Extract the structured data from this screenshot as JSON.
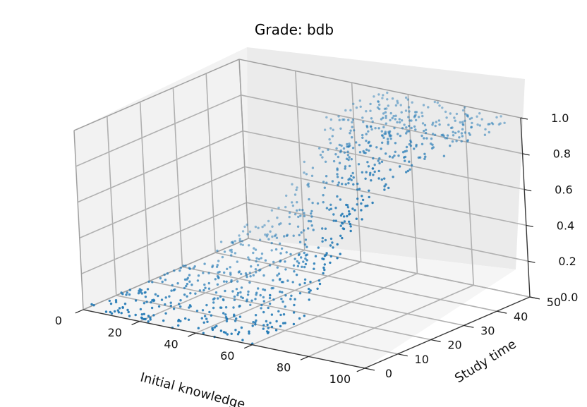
{
  "chart_data": {
    "type": "scatter",
    "title": "Grade: bdb",
    "xlabel": "Initial knowledge",
    "ylabel": "Study time",
    "zlabel": "",
    "xlim": [
      0,
      100
    ],
    "ylim": [
      0,
      50
    ],
    "zlim": [
      0,
      1
    ],
    "x_ticks": [
      "0",
      "20",
      "40",
      "60",
      "80",
      "100"
    ],
    "y_ticks": [
      "0",
      "10",
      "20",
      "30",
      "40",
      "50"
    ],
    "z_ticks": [
      "0.0",
      "0.2",
      "0.4",
      "0.6",
      "0.8",
      "1.0"
    ],
    "grid": true,
    "point_color": "#1f77b4",
    "point_count": 900,
    "points": [
      {
        "x": 6,
        "y": 5,
        "z": 0.0
      },
      {
        "x": 12,
        "y": 20,
        "z": 0.02
      },
      {
        "x": 25,
        "y": 40,
        "z": 0.05
      },
      {
        "x": 45,
        "y": 10,
        "z": 0.01
      },
      {
        "x": 60,
        "y": 30,
        "z": 0.45
      },
      {
        "x": 70,
        "y": 45,
        "z": 0.95
      },
      {
        "x": 80,
        "y": 35,
        "z": 0.9
      },
      {
        "x": 95,
        "y": 48,
        "z": 1.0
      },
      {
        "x": 85,
        "y": 15,
        "z": 0.3
      }
    ],
    "description": "Sigmoid-like surface: grade near 0 for low initial knowledge/study time, rising to ~1.0 for high values."
  }
}
